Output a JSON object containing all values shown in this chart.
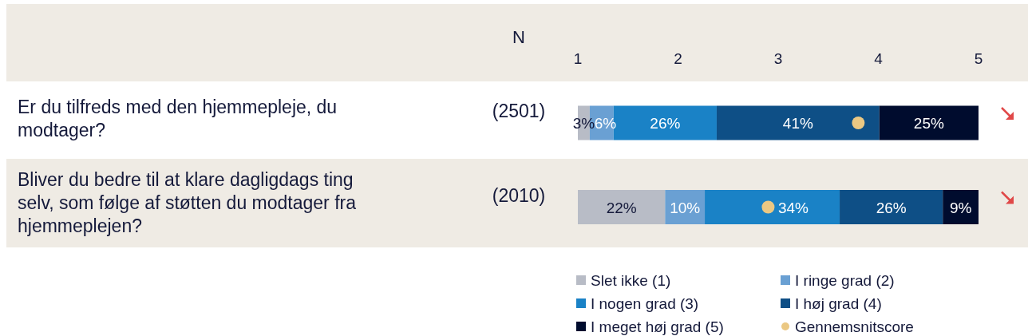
{
  "chart_data": {
    "type": "bar",
    "orientation": "horizontal",
    "stacked": true,
    "categories": [
      "Er du tilfreds med den hjemmepleje, du modtager?",
      "Bliver du bedre til at klare dagligdags ting selv, som følge af støtten du modtager fra hjemmeplejen?"
    ],
    "xlim": [
      0,
      101
    ],
    "x2lim": [
      1,
      5
    ],
    "x2ticks": [
      1,
      2,
      3,
      4,
      5
    ],
    "series": [
      {
        "name": "Slet ikke (1)",
        "color": "#b8bcc6",
        "values": [
          3,
          22
        ],
        "value_labels": [
          "3%",
          "22%"
        ]
      },
      {
        "name": "I ringe grad (2)",
        "color": "#6aa0d3",
        "values": [
          6,
          10
        ],
        "value_labels": [
          "6%",
          "10%"
        ]
      },
      {
        "name": "I nogen grad (3)",
        "color": "#1a82c6",
        "values": [
          26,
          34
        ],
        "value_labels": [
          "26%",
          "34%"
        ]
      },
      {
        "name": "I høj grad (4)",
        "color": "#0e4f86",
        "values": [
          41,
          26
        ],
        "value_labels": [
          "41%",
          "26%"
        ]
      },
      {
        "name": "I meget høj grad (5)",
        "color": "#000c2e",
        "values": [
          25,
          9
        ],
        "value_labels": [
          "25%",
          "9%"
        ]
      },
      {
        "name": "Gennemsnitscore",
        "type": "scatter",
        "axis": "x2",
        "marker": "circle",
        "color": "#ebc883",
        "values": [
          3.8,
          2.9
        ]
      }
    ],
    "annotations": [
      "N",
      "(2501)",
      "(2010)"
    ],
    "legend": "bottom",
    "grid": false
  }
}
